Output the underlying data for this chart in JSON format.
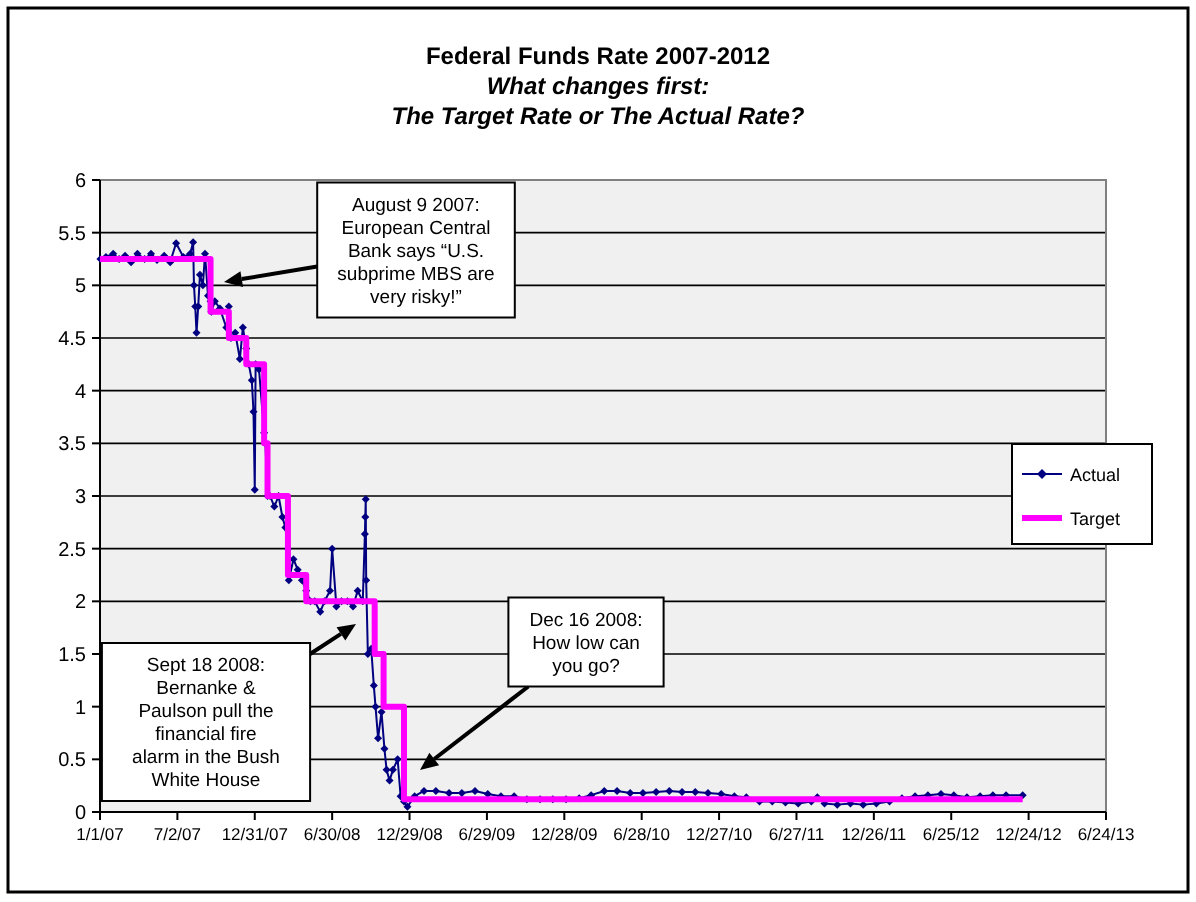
{
  "chart_data": {
    "type": "line",
    "title": "Federal Funds Rate 2007-2012",
    "subtitle": "What changes first:\nThe Target Rate or The Actual Rate?",
    "xlim": [
      "2007-01-01",
      "2013-06-24"
    ],
    "xticks": [
      {
        "value": "2007-01-01",
        "label": "1/1/07"
      },
      {
        "value": "2007-07-02",
        "label": "7/2/07"
      },
      {
        "value": "2007-12-31",
        "label": "12/31/07"
      },
      {
        "value": "2008-06-30",
        "label": "6/30/08"
      },
      {
        "value": "2008-12-29",
        "label": "12/29/08"
      },
      {
        "value": "2009-06-29",
        "label": "6/29/09"
      },
      {
        "value": "2009-12-28",
        "label": "12/28/09"
      },
      {
        "value": "2010-06-28",
        "label": "6/28/10"
      },
      {
        "value": "2010-12-27",
        "label": "12/27/10"
      },
      {
        "value": "2011-06-27",
        "label": "6/27/11"
      },
      {
        "value": "2011-12-26",
        "label": "12/26/11"
      },
      {
        "value": "2012-06-25",
        "label": "6/25/12"
      },
      {
        "value": "2012-12-24",
        "label": "12/24/12"
      },
      {
        "value": "2013-06-24",
        "label": "6/24/13"
      }
    ],
    "ylim": [
      0,
      6
    ],
    "yticks": [
      0,
      0.5,
      1,
      1.5,
      2,
      2.5,
      3,
      3.5,
      4,
      4.5,
      5,
      5.5,
      6
    ],
    "grid": "y",
    "legend": "right",
    "series": [
      {
        "name": "Actual",
        "color": "#000080",
        "type": "line",
        "marker": "diamond",
        "x": [
          "2007-01-02",
          "2007-01-15",
          "2007-02-01",
          "2007-02-15",
          "2007-03-01",
          "2007-03-15",
          "2007-03-30",
          "2007-04-16",
          "2007-05-01",
          "2007-05-15",
          "2007-06-01",
          "2007-06-15",
          "2007-06-29",
          "2007-07-16",
          "2007-08-01",
          "2007-08-08",
          "2007-08-10",
          "2007-08-13",
          "2007-08-16",
          "2007-08-20",
          "2007-08-24",
          "2007-08-31",
          "2007-09-05",
          "2007-09-12",
          "2007-09-18",
          "2007-09-20",
          "2007-09-28",
          "2007-10-10",
          "2007-10-25",
          "2007-10-31",
          "2007-11-05",
          "2007-11-15",
          "2007-11-26",
          "2007-12-03",
          "2007-12-11",
          "2007-12-17",
          "2007-12-24",
          "2007-12-28",
          "2007-12-31",
          "2008-01-02",
          "2008-01-10",
          "2008-01-22",
          "2008-01-25",
          "2008-01-30",
          "2008-02-05",
          "2008-02-15",
          "2008-02-25",
          "2008-03-05",
          "2008-03-12",
          "2008-03-18",
          "2008-03-20",
          "2008-03-31",
          "2008-04-10",
          "2008-04-20",
          "2008-04-30",
          "2008-05-10",
          "2008-05-20",
          "2008-06-02",
          "2008-06-12",
          "2008-06-25",
          "2008-06-30",
          "2008-07-10",
          "2008-07-22",
          "2008-08-05",
          "2008-08-18",
          "2008-08-29",
          "2008-09-10",
          "2008-09-15",
          "2008-09-16",
          "2008-09-17",
          "2008-09-18",
          "2008-09-22",
          "2008-09-30",
          "2008-10-06",
          "2008-10-10",
          "2008-10-16",
          "2008-10-24",
          "2008-10-31",
          "2008-11-05",
          "2008-11-12",
          "2008-11-20",
          "2008-12-01",
          "2008-12-08",
          "2008-12-16",
          "2008-12-24",
          "2009-01-10",
          "2009-02-01",
          "2009-03-01",
          "2009-04-01",
          "2009-05-01",
          "2009-06-01",
          "2009-07-01",
          "2009-08-01",
          "2009-09-01",
          "2009-10-01",
          "2009-11-01",
          "2009-12-01",
          "2010-01-01",
          "2010-02-01",
          "2010-03-01",
          "2010-04-01",
          "2010-05-01",
          "2010-06-01",
          "2010-07-01",
          "2010-08-01",
          "2010-09-01",
          "2010-10-01",
          "2010-11-01",
          "2010-12-01",
          "2011-01-01",
          "2011-02-01",
          "2011-03-01",
          "2011-04-01",
          "2011-05-01",
          "2011-06-01",
          "2011-07-01",
          "2011-08-01",
          "2011-08-15",
          "2011-09-01",
          "2011-10-01",
          "2011-11-01",
          "2011-12-01",
          "2012-01-01",
          "2012-02-01",
          "2012-03-01",
          "2012-04-01",
          "2012-05-01",
          "2012-06-01",
          "2012-07-01",
          "2012-08-01",
          "2012-09-01",
          "2012-10-01",
          "2012-11-01",
          "2012-12-10"
        ],
        "values": [
          5.25,
          5.27,
          5.3,
          5.25,
          5.28,
          5.22,
          5.3,
          5.25,
          5.3,
          5.24,
          5.28,
          5.22,
          5.4,
          5.27,
          5.3,
          5.41,
          5.0,
          4.8,
          4.55,
          4.8,
          5.1,
          5.0,
          5.3,
          4.9,
          4.85,
          4.75,
          4.85,
          4.78,
          4.6,
          4.8,
          4.5,
          4.55,
          4.3,
          4.6,
          4.4,
          4.25,
          4.1,
          3.8,
          3.06,
          4.25,
          4.2,
          3.6,
          3.5,
          3.0,
          3.0,
          2.9,
          3.0,
          2.8,
          2.7,
          2.5,
          2.2,
          2.4,
          2.3,
          2.2,
          2.1,
          2.0,
          2.0,
          1.9,
          2.0,
          2.1,
          2.5,
          1.95,
          2.0,
          2.0,
          1.95,
          2.1,
          2.0,
          2.64,
          2.8,
          2.97,
          2.2,
          1.5,
          1.55,
          1.2,
          1.0,
          0.7,
          0.95,
          0.6,
          0.4,
          0.3,
          0.4,
          0.5,
          0.15,
          0.1,
          0.05,
          0.15,
          0.2,
          0.2,
          0.18,
          0.18,
          0.2,
          0.17,
          0.15,
          0.15,
          0.12,
          0.12,
          0.12,
          0.12,
          0.13,
          0.16,
          0.2,
          0.2,
          0.18,
          0.18,
          0.19,
          0.2,
          0.19,
          0.19,
          0.18,
          0.17,
          0.15,
          0.14,
          0.1,
          0.1,
          0.09,
          0.08,
          0.1,
          0.14,
          0.08,
          0.07,
          0.08,
          0.07,
          0.08,
          0.1,
          0.13,
          0.15,
          0.16,
          0.17,
          0.16,
          0.14,
          0.15,
          0.16,
          0.16,
          0.16
        ]
      },
      {
        "name": "Target",
        "color": "#ff00ff",
        "type": "step",
        "marker": "none",
        "x": [
          "2007-01-01",
          "2007-09-18",
          "2007-10-31",
          "2007-12-11",
          "2008-01-22",
          "2008-01-30",
          "2008-03-18",
          "2008-04-30",
          "2008-10-08",
          "2008-10-29",
          "2008-12-16",
          "2012-12-10"
        ],
        "values": [
          5.25,
          4.75,
          4.5,
          4.25,
          3.5,
          3.0,
          2.25,
          2.0,
          1.5,
          1.0,
          0.12,
          0.12
        ]
      }
    ],
    "annotations": [
      "August 9 2007: European Central Bank says “U.S. subprime MBS are very risky!”",
      "Sept 18 2008: Bernanke & Paulson pull the financial fire alarm in the Bush White House",
      "Dec 16 2008: How low can you go?"
    ]
  }
}
